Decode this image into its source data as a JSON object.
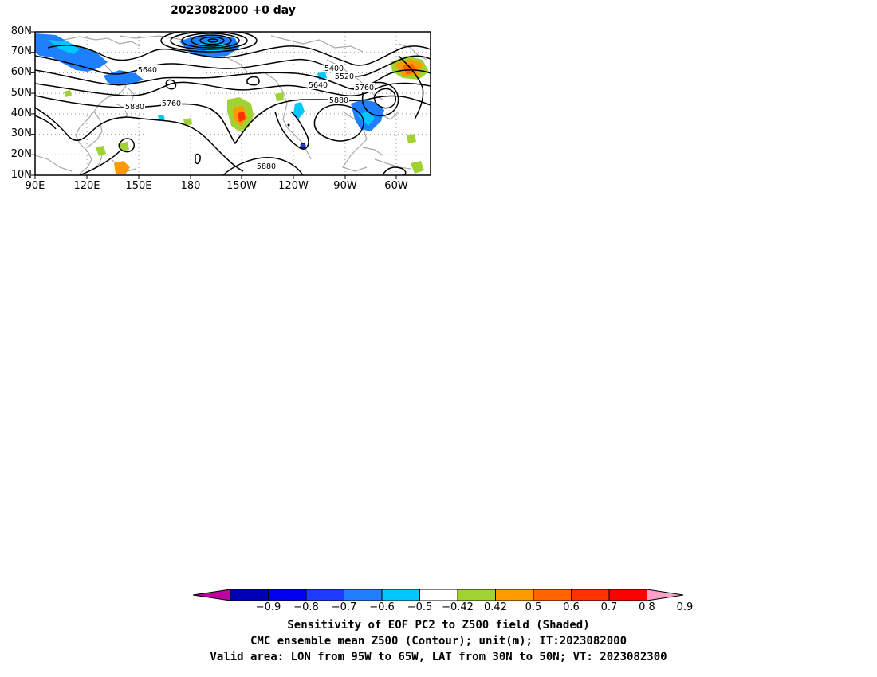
{
  "title": "2023082000  +0 day",
  "lat_ticks": [
    "80N",
    "70N",
    "60N",
    "50N",
    "40N",
    "30N",
    "20N",
    "10N"
  ],
  "lon_ticks": [
    "90E",
    "120E",
    "150E",
    "180",
    "150W",
    "120W",
    "90W",
    "60W"
  ],
  "contour_labels": [
    "5640",
    "5760",
    "5880",
    "5400",
    "5520",
    "5640",
    "5760",
    "5880",
    "5880"
  ],
  "colorbar": {
    "tick_labels": [
      "-0.9",
      "-0.8",
      "-0.7",
      "-0.6",
      "-0.5",
      "-0.42",
      "0.42",
      "0.5",
      "0.6",
      "0.7",
      "0.8",
      "0.9"
    ],
    "colors": [
      "#c000a0",
      "#0000b4",
      "#0000f0",
      "#1e3cff",
      "#1e80ff",
      "#00c8ff",
      "#ffffff",
      "#a0d232",
      "#ff9b00",
      "#ff6400",
      "#ff3200",
      "#ff0000",
      "#ffa0c8"
    ]
  },
  "shading_colors": {
    "neg_strong": "#1e80ff",
    "neg_weak": "#00c8ff",
    "pos_weak": "#a0d232",
    "pos_mid": "#ff9b00",
    "pos_strong": "#ff3200"
  },
  "caption": {
    "line1": "Sensitivity of EOF PC2 to Z500 field (Shaded)",
    "line2": "CMC ensemble mean Z500 (Contour); unit(m); IT:2023082000",
    "line3": "Valid area: LON from 95W to 65W, LAT from 30N to 50N; VT: 2023082300"
  }
}
